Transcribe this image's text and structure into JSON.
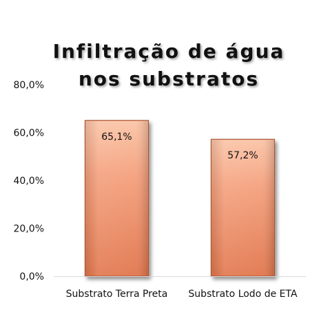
{
  "chart_data": {
    "type": "bar",
    "title_lines": [
      "Infiltração de água",
      "nos substratos"
    ],
    "categories": [
      "Substrato Terra Preta",
      "Substrato Lodo de ETA"
    ],
    "values": [
      65.1,
      57.2
    ],
    "value_labels": [
      "65,1%",
      "57,2%"
    ],
    "y_tick_labels": [
      "0,0%",
      "20,0%",
      "40,0%",
      "60,0%",
      "80,0%"
    ],
    "y_ticks": [
      0,
      20,
      40,
      60,
      80
    ],
    "ylim": [
      0,
      80
    ],
    "xlabel": "",
    "ylabel": "",
    "grid": false,
    "legend": "none",
    "colors": {
      "bar_top": "#fbc4a7",
      "bar_mid": "#f4a07c",
      "bar_bottom": "#e1764d",
      "bar_border": "#a9532f",
      "axis": "#d9d9d9",
      "text": "#111111"
    }
  }
}
